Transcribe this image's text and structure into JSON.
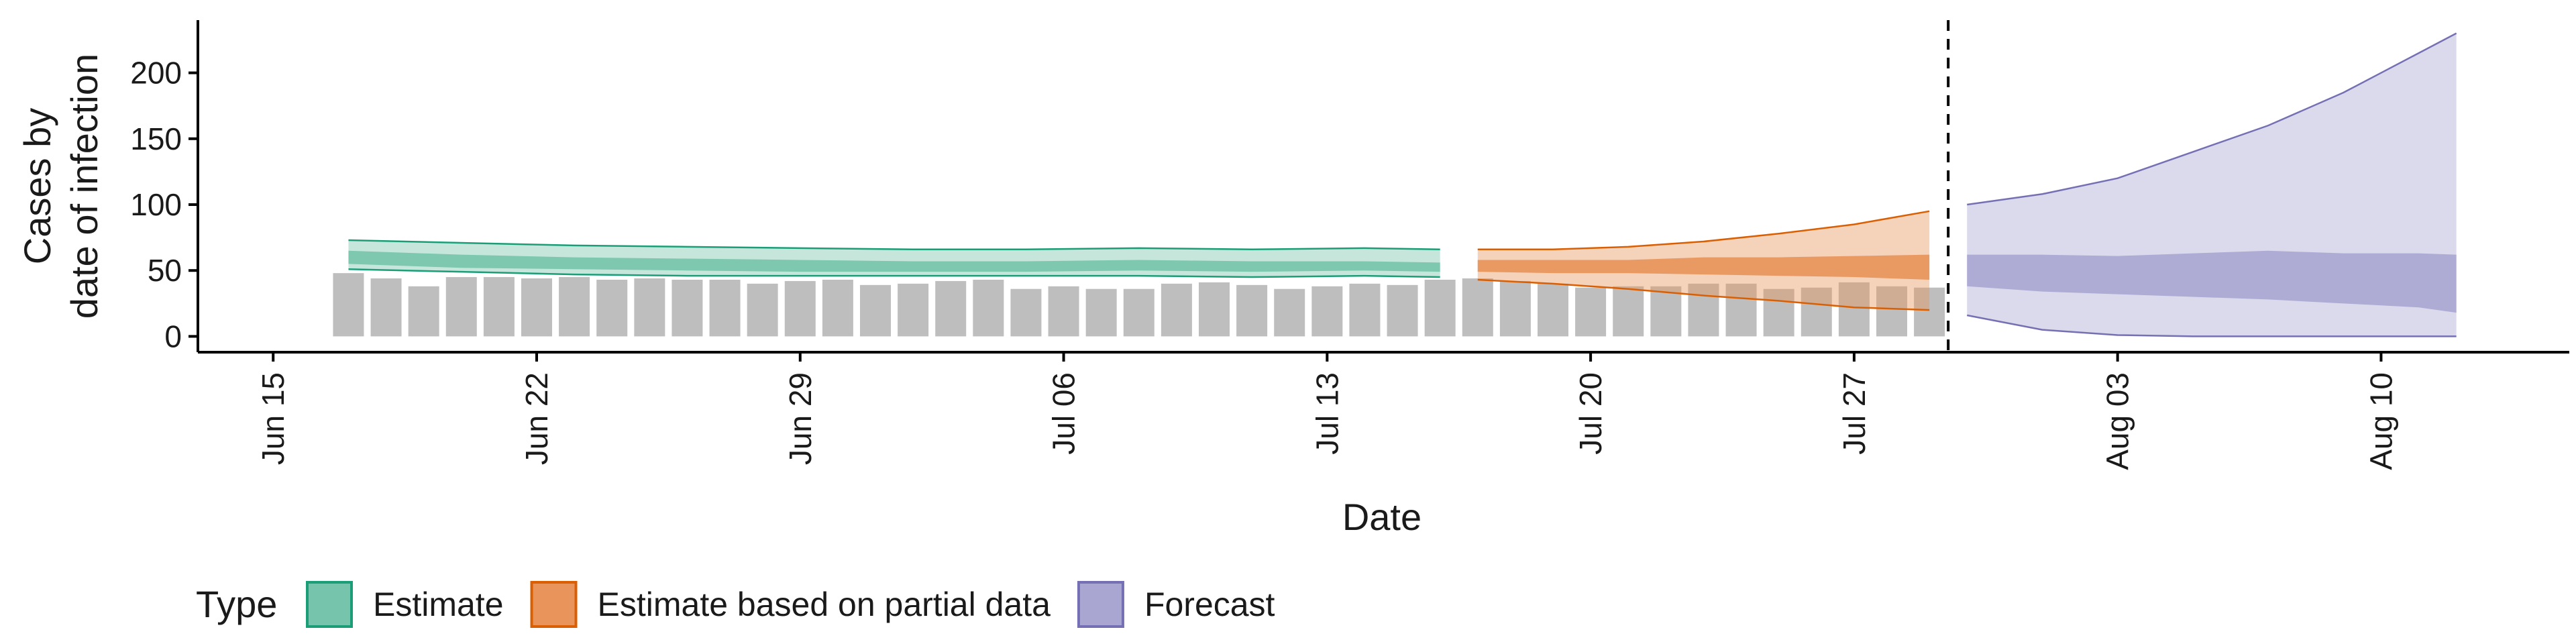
{
  "chart_data": {
    "type": "area",
    "xlabel": "Date",
    "ylabel_lines": [
      "Cases by",
      "date of infection"
    ],
    "ylim": [
      -12,
      240
    ],
    "y_ticks": [
      0,
      50,
      100,
      150,
      200
    ],
    "x_range": [
      "2020-06-13",
      "2020-08-15"
    ],
    "x_ticks": [
      {
        "date": "2020-06-15",
        "label": "Jun 15"
      },
      {
        "date": "2020-06-22",
        "label": "Jun 22"
      },
      {
        "date": "2020-06-29",
        "label": "Jun 29"
      },
      {
        "date": "2020-07-06",
        "label": "Jul 06"
      },
      {
        "date": "2020-07-13",
        "label": "Jul 13"
      },
      {
        "date": "2020-07-20",
        "label": "Jul 20"
      },
      {
        "date": "2020-07-27",
        "label": "Jul 27"
      },
      {
        "date": "2020-08-03",
        "label": "Aug 03"
      },
      {
        "date": "2020-08-10",
        "label": "Aug 10"
      }
    ],
    "vline_date": "2020-07-29",
    "grid": false,
    "legend": {
      "title": "Type",
      "position": "bottom"
    },
    "bars": {
      "color": "#bebebe",
      "dates": [
        "2020-06-17",
        "2020-06-18",
        "2020-06-19",
        "2020-06-20",
        "2020-06-21",
        "2020-06-22",
        "2020-06-23",
        "2020-06-24",
        "2020-06-25",
        "2020-06-26",
        "2020-06-27",
        "2020-06-28",
        "2020-06-29",
        "2020-06-30",
        "2020-07-01",
        "2020-07-02",
        "2020-07-03",
        "2020-07-04",
        "2020-07-05",
        "2020-07-06",
        "2020-07-07",
        "2020-07-08",
        "2020-07-09",
        "2020-07-10",
        "2020-07-11",
        "2020-07-12",
        "2020-07-13",
        "2020-07-14",
        "2020-07-15",
        "2020-07-16",
        "2020-07-17",
        "2020-07-18",
        "2020-07-19",
        "2020-07-20",
        "2020-07-21",
        "2020-07-22",
        "2020-07-23",
        "2020-07-24",
        "2020-07-25",
        "2020-07-26",
        "2020-07-27",
        "2020-07-28",
        "2020-07-29"
      ],
      "values": [
        48,
        44,
        38,
        45,
        45,
        44,
        45,
        43,
        44,
        43,
        43,
        40,
        42,
        43,
        39,
        40,
        42,
        43,
        36,
        38,
        36,
        36,
        40,
        41,
        39,
        36,
        38,
        40,
        39,
        43,
        44,
        42,
        40,
        37,
        38,
        38,
        40,
        40,
        36,
        37,
        41,
        38,
        37
      ]
    },
    "series": [
      {
        "name": "Estimate",
        "color": "#1b9e77",
        "fill": "#76c4ab",
        "dates": [
          "2020-06-17",
          "2020-06-20",
          "2020-06-23",
          "2020-06-26",
          "2020-06-29",
          "2020-07-02",
          "2020-07-05",
          "2020-07-08",
          "2020-07-11",
          "2020-07-14",
          "2020-07-16"
        ],
        "outer_upper": [
          73,
          71,
          69,
          68,
          67,
          66,
          66,
          67,
          66,
          67,
          66
        ],
        "inner_upper": [
          65,
          62,
          60,
          59,
          58,
          57,
          57,
          58,
          57,
          57,
          56
        ],
        "inner_lower": [
          55,
          52,
          51,
          50,
          49,
          49,
          49,
          50,
          49,
          50,
          49
        ],
        "outer_lower": [
          51,
          49,
          47,
          46,
          46,
          46,
          46,
          46,
          45,
          46,
          45
        ]
      },
      {
        "name": "Estimate based on partial data",
        "color": "#d95f02",
        "fill": "#e8945a",
        "dates": [
          "2020-07-17",
          "2020-07-19",
          "2020-07-21",
          "2020-07-23",
          "2020-07-25",
          "2020-07-27",
          "2020-07-29"
        ],
        "outer_upper": [
          66,
          66,
          68,
          72,
          78,
          85,
          95
        ],
        "inner_upper": [
          58,
          58,
          58,
          60,
          60,
          61,
          62
        ],
        "inner_lower": [
          49,
          48,
          48,
          47,
          46,
          45,
          43
        ],
        "outer_lower": [
          43,
          40,
          36,
          31,
          27,
          22,
          20
        ]
      },
      {
        "name": "Forecast",
        "color": "#7570b3",
        "fill": "#a9a6d2",
        "dates": [
          "2020-07-30",
          "2020-08-01",
          "2020-08-03",
          "2020-08-05",
          "2020-08-07",
          "2020-08-09",
          "2020-08-11",
          "2020-08-12"
        ],
        "outer_upper": [
          100,
          108,
          120,
          140,
          160,
          185,
          215,
          230
        ],
        "inner_upper": [
          62,
          62,
          61,
          63,
          65,
          63,
          63,
          62
        ],
        "inner_lower": [
          38,
          34,
          32,
          30,
          28,
          25,
          22,
          18
        ],
        "outer_lower": [
          16,
          5,
          1,
          0,
          0,
          0,
          0,
          0
        ]
      }
    ]
  }
}
